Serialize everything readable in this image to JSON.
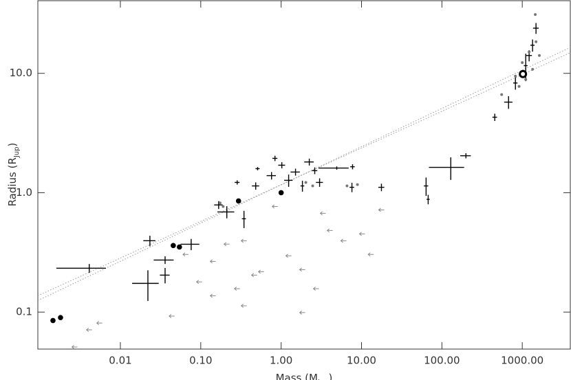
{
  "chart_data": {
    "type": "scatter",
    "xlabel": [
      "Mass  (M",
      "Jup",
      ")"
    ],
    "ylabel": [
      "Radius  (R",
      "Jup",
      ")"
    ],
    "log_x": true,
    "log_y": true,
    "xlim": [
      0.00094,
      3960
    ],
    "ylim": [
      0.049,
      40.6
    ],
    "xticks": [
      0.01,
      {
        "value": 0.1,
        "label": "0.10"
      },
      {
        "value": 1,
        "label": "1.00"
      },
      {
        "value": 10,
        "label": "10.00"
      },
      {
        "value": 100,
        "label": "100.00"
      },
      {
        "value": 1000,
        "label": "1000.00"
      }
    ],
    "yticks": [
      0.1,
      {
        "value": 1,
        "label": "1.0"
      },
      {
        "value": 10,
        "label": "10.0"
      }
    ],
    "series": [
      {
        "marker": "cross",
        "color": "#000000",
        "x": [
          0.022,
          0.211,
          0.345,
          0.076,
          0.284,
          0.51,
          0.76,
          1.02,
          1.24,
          1.51,
          2.24,
          3.01,
          4.92,
          7.74,
          7.6,
          63.6,
          67.5,
          129,
          199,
          455,
          675,
          822,
          1217,
          1482,
          1104,
          1343,
          0.483,
          0.838,
          1.84,
          2.62,
          17.7,
          0.036,
          0.0041,
          0.0233,
          0.036,
          0.167
        ],
        "y": [
          0.174,
          0.69,
          0.605,
          0.37,
          1.22,
          1.59,
          1.39,
          1.7,
          1.27,
          1.49,
          1.81,
          1.22,
          1.61,
          1.65,
          1.11,
          1.14,
          0.88,
          1.63,
          2.04,
          4.29,
          5.74,
          8.3,
          14.1,
          23.9,
          11.6,
          17.2,
          1.14,
          1.94,
          1.14,
          1.53,
          1.11,
          0.204,
          0.233,
          0.396,
          0.273,
          0.79
        ],
        "xerr": [
          0.008,
          0.05,
          0.02,
          0.02,
          0.02,
          0.03,
          0.1,
          0.1,
          0.15,
          0.2,
          0.3,
          0.3,
          2,
          0.5,
          0.5,
          4,
          3,
          60,
          30,
          30,
          80,
          50,
          100,
          120,
          60,
          80,
          0.05,
          0.06,
          0.1,
          0.2,
          1.5,
          0.005,
          0.0025,
          0.004,
          0.01,
          0.02
        ],
        "yerr": [
          0.05,
          0.08,
          0.1,
          0.04,
          0.05,
          0.05,
          0.1,
          0.1,
          0.15,
          0.1,
          0.12,
          0.1,
          0.05,
          0.08,
          0.1,
          0.2,
          0.08,
          0.35,
          0.1,
          0.3,
          0.7,
          1,
          1.5,
          2.5,
          3,
          2,
          0.08,
          0.1,
          0.12,
          0.1,
          0.08,
          0.03,
          0.02,
          0.04,
          0.02,
          0.06
        ]
      },
      {
        "marker": "upper_limit",
        "color": "#888888",
        "x": [
          0.211,
          0.345,
          0.142,
          0.096,
          0.284,
          0.565,
          1.24,
          1.84,
          2.73,
          4.05,
          5.99,
          10.2,
          13.1,
          17.7,
          0.0437,
          0.345,
          1.84,
          0.065,
          0.142,
          0.838,
          3.32,
          0.0055,
          0.0041,
          0.0027,
          0.464
        ],
        "y": [
          0.371,
          0.396,
          0.266,
          0.179,
          0.157,
          0.218,
          0.296,
          0.227,
          0.157,
          0.483,
          0.396,
          0.452,
          0.304,
          0.718,
          0.0926,
          0.113,
          0.099,
          0.304,
          0.137,
          0.767,
          0.673,
          0.081,
          0.071,
          0.051,
          0.204
        ]
      },
      {
        "marker": "dot",
        "color": "#777777",
        "x": [
          554,
          822,
          1000,
          1217,
          1482,
          1104,
          1343,
          913,
          1631,
          1451,
          0.174,
          0.19,
          2.03,
          2.47,
          6.6,
          8.9
        ],
        "y": [
          6.64,
          9.48,
          12.3,
          15.1,
          18.4,
          8.89,
          10.8,
          7.77,
          14.1,
          31.1,
          0.82,
          0.767,
          1.22,
          1.14,
          1.14,
          1.17
        ]
      },
      {
        "marker": "solar",
        "color": "#000000",
        "x": [
          0.00145,
          0.0018,
          0.0455,
          0.0543,
          0.295,
          1.0
        ],
        "y": [
          0.085,
          0.09,
          0.361,
          0.351,
          0.853,
          1.0
        ]
      },
      {
        "marker": "sun",
        "color": "#ffffff",
        "x": [
          1020
        ],
        "y": [
          9.87
        ]
      }
    ],
    "lines": [
      {
        "color": "#999999",
        "x": [
          0.00094,
          3960
        ],
        "y": [
          0.125,
          16.5
        ]
      },
      {
        "color": "#999999",
        "x": [
          0.00094,
          3960
        ],
        "y": [
          0.137,
          14.9
        ]
      }
    ]
  }
}
